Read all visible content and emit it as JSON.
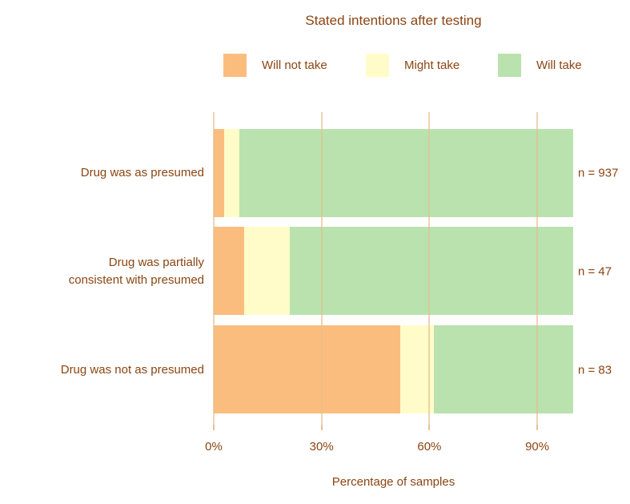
{
  "colors": {
    "text": "#8B4513",
    "gridline": "#EFD8B5",
    "background": "#FFFFFF",
    "will_not_take": "#FBBD7E",
    "might_take": "#FFFCC9",
    "will_take": "#B9E2AF"
  },
  "legend": {
    "position": "top",
    "items": [
      {
        "label": "Will not take",
        "color": "#FBBD7E"
      },
      {
        "label": "Might take",
        "color": "#FFFCC9"
      },
      {
        "label": "Will take",
        "color": "#B9E2AF"
      }
    ]
  },
  "chart_data": {
    "type": "bar",
    "orientation": "horizontal",
    "stacked": true,
    "title": "Stated intentions after testing",
    "xlabel": "Percentage of samples",
    "ylabel": "",
    "xlim": [
      0,
      100
    ],
    "grid": "vertical",
    "categories": [
      "Drug was as presumed",
      "Drug was partially\nconsistent with presumed",
      "Drug was not as presumed"
    ],
    "n_labels": [
      "n = 937",
      "n = 47",
      "n = 83"
    ],
    "series": [
      {
        "name": "Will not take",
        "color": "#FBBD7E",
        "values": [
          2.9,
          8.5,
          51.9
        ]
      },
      {
        "name": "Might take",
        "color": "#FFFCC9",
        "values": [
          4.2,
          12.7,
          9.4
        ]
      },
      {
        "name": "Will take",
        "color": "#B9E2AF",
        "values": [
          92.9,
          78.8,
          38.7
        ]
      }
    ],
    "x_ticks": [
      {
        "label": "0%",
        "value": 0
      },
      {
        "label": "30%",
        "value": 30
      },
      {
        "label": "60%",
        "value": 60
      },
      {
        "label": "90%",
        "value": 90
      }
    ]
  }
}
